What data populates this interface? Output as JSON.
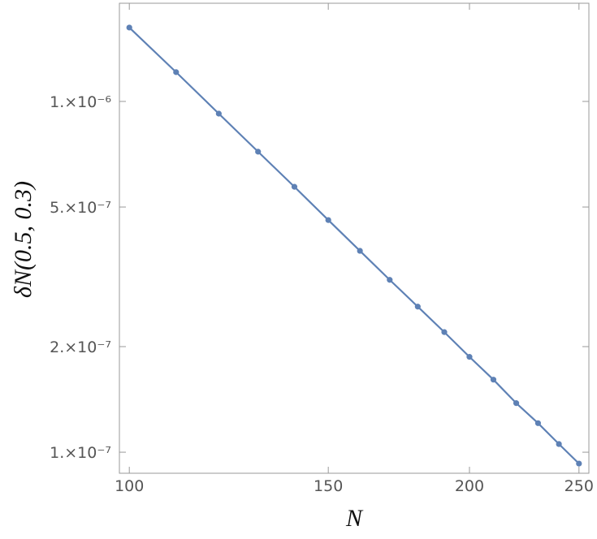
{
  "chart_data": {
    "type": "line",
    "xlabel": "N",
    "ylabel": "δN(0.5, 0.3)",
    "xscale": "log",
    "yscale": "log",
    "x": [
      100,
      110,
      120,
      130,
      140,
      150,
      160,
      170,
      180,
      190,
      200,
      210,
      220,
      230,
      240,
      250
    ],
    "series": [
      {
        "color": "#5e81b5",
        "values": [
          1.624e-06,
          1.212e-06,
          9.23e-07,
          7.19e-07,
          5.71e-07,
          4.59e-07,
          3.75e-07,
          3.1e-07,
          2.6e-07,
          2.2e-07,
          1.87e-07,
          1.61e-07,
          1.38e-07,
          1.21e-07,
          1.055e-07,
          9.28e-08
        ]
      }
    ],
    "xlim": [
      98.0,
      255.1
    ],
    "ylim": [
      8.71e-08,
      1.905e-06
    ],
    "xticks": [
      100,
      150,
      200,
      250
    ],
    "yticks": [
      {
        "value": 1e-07,
        "label": "1.×10⁻⁷"
      },
      {
        "value": 2e-07,
        "label": "2.×10⁻⁷"
      },
      {
        "value": 5e-07,
        "label": "5.×10⁻⁷"
      },
      {
        "value": 1e-06,
        "label": "1.×10⁻⁶"
      }
    ]
  }
}
